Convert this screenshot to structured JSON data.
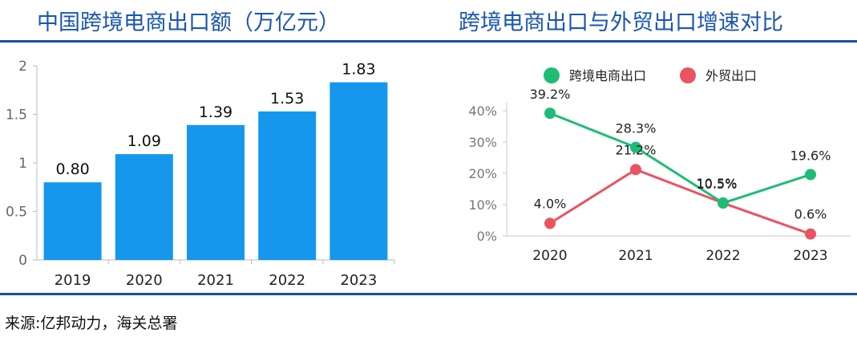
{
  "titles": {
    "left": "中国跨境电商出口额（万亿元）",
    "right": "跨境电商出口与外贸出口增速对比"
  },
  "source": "来源:亿邦动力，海关总署",
  "colors": {
    "bar": "#1597ee",
    "series1": "#1fbc76",
    "series2": "#ea5362",
    "title": "#1a56b0",
    "rule": "#1a4fa0"
  },
  "chart_data": [
    {
      "type": "bar",
      "categories": [
        "2019",
        "2020",
        "2021",
        "2022",
        "2023"
      ],
      "values": [
        0.8,
        1.09,
        1.39,
        1.53,
        1.83
      ],
      "value_labels": [
        "0.80",
        "1.09",
        "1.39",
        "1.53",
        "1.83"
      ],
      "title": "中国跨境电商出口额（万亿元）",
      "ylim": [
        0,
        2
      ],
      "yticks": [
        0,
        0.5,
        1,
        1.5,
        2
      ],
      "ytick_labels": [
        "0",
        "0.5",
        "1",
        "1.5",
        "2"
      ],
      "grid": false
    },
    {
      "type": "line",
      "categories": [
        "2020",
        "2021",
        "2022",
        "2023"
      ],
      "series": [
        {
          "name": "跨境电商出口",
          "values": [
            39.2,
            28.3,
            10.5,
            19.6
          ],
          "labels": [
            "39.2%",
            "28.3%",
            "10.5%",
            "19.6%"
          ]
        },
        {
          "name": "外贸出口",
          "values": [
            4.0,
            21.2,
            10.5,
            0.6
          ],
          "labels": [
            "4.0%",
            "21.2%",
            "10.5%",
            "0.6%"
          ]
        }
      ],
      "title": "跨境电商出口与外贸出口增速对比",
      "ylim": [
        0,
        40
      ],
      "yticks": [
        0,
        10,
        20,
        30,
        40
      ],
      "ytick_labels": [
        "0%",
        "10%",
        "20%",
        "30%",
        "40%"
      ],
      "legend": "top",
      "grid": false
    }
  ]
}
